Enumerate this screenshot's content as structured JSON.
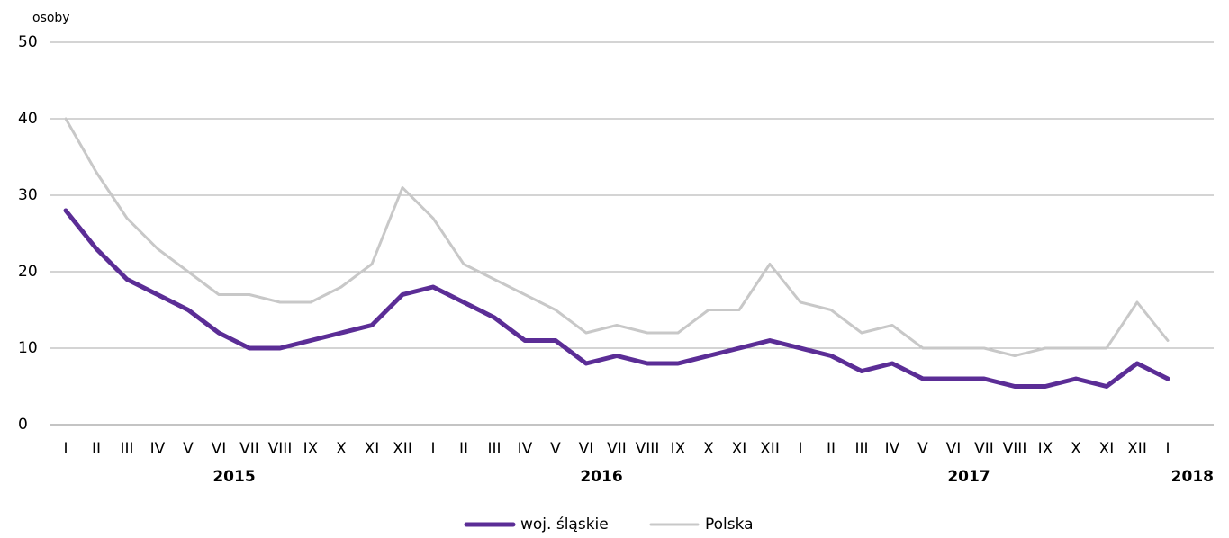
{
  "chart_data": {
    "type": "line",
    "y_label": "osoby",
    "categories": [
      "I",
      "II",
      "III",
      "IV",
      "V",
      "VI",
      "VII",
      "VIII",
      "IX",
      "X",
      "XI",
      "XII",
      "I",
      "II",
      "III",
      "IV",
      "V",
      "VI",
      "VII",
      "VIII",
      "IX",
      "X",
      "XI",
      "XII",
      "I",
      "II",
      "III",
      "IV",
      "V",
      "VI",
      "VII",
      "VIII",
      "IX",
      "X",
      "XI",
      "XII",
      "I"
    ],
    "category_groups": [
      "2015",
      "2016",
      "2017",
      "2018"
    ],
    "series": [
      {
        "name": "woj. śląskie",
        "color": "#5b2d96",
        "values": [
          28,
          23,
          19,
          17,
          15,
          12,
          10,
          10,
          11,
          12,
          13,
          17,
          18,
          16,
          14,
          11,
          11,
          8,
          9,
          8,
          8,
          9,
          10,
          11,
          10,
          9,
          7,
          8,
          6,
          6,
          6,
          5,
          5,
          6,
          5,
          8,
          6
        ]
      },
      {
        "name": "Polska",
        "color": "#c8c8c8",
        "values": [
          40,
          33,
          27,
          23,
          20,
          17,
          17,
          16,
          16,
          18,
          21,
          31,
          27,
          21,
          19,
          17,
          15,
          12,
          13,
          12,
          12,
          15,
          15,
          21,
          16,
          15,
          12,
          13,
          10,
          10,
          10,
          9,
          10,
          10,
          10,
          16,
          11
        ]
      }
    ],
    "ylim": [
      0,
      50
    ],
    "yticks": [
      0,
      10,
      20,
      30,
      40,
      50
    ],
    "grid": true,
    "legend": "bottom"
  }
}
